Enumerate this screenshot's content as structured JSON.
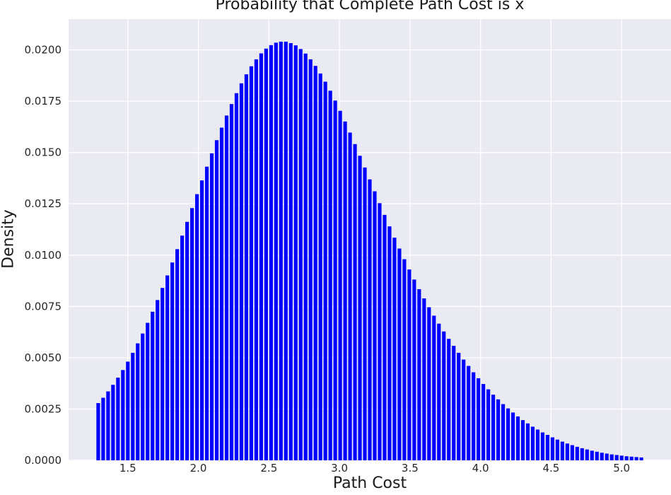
{
  "chart_data": {
    "type": "bar",
    "title": "Probability that Complete Path Cost is x",
    "xlabel": "Path Cost",
    "ylabel": "Density",
    "xlim": [
      1.08,
      5.35
    ],
    "ylim": [
      0.0,
      0.0215
    ],
    "xticks": [
      "1.5",
      "2.0",
      "2.5",
      "3.0",
      "3.5",
      "4.0",
      "4.5",
      "5.0"
    ],
    "yticks": [
      "0.0000",
      "0.0025",
      "0.0050",
      "0.0075",
      "0.0100",
      "0.0125",
      "0.0150",
      "0.0175",
      "0.0200"
    ],
    "grid": true,
    "background": "#eaeaf2",
    "grid_color": "#ffffff",
    "bar_color": "#0000ff",
    "bar_width": 0.026,
    "x": [
      1.29,
      1.325,
      1.36,
      1.395,
      1.43,
      1.465,
      1.5,
      1.535,
      1.57,
      1.605,
      1.64,
      1.675,
      1.71,
      1.745,
      1.78,
      1.815,
      1.85,
      1.885,
      1.92,
      1.955,
      1.99,
      2.025,
      2.06,
      2.095,
      2.13,
      2.165,
      2.2,
      2.235,
      2.27,
      2.305,
      2.34,
      2.375,
      2.41,
      2.445,
      2.48,
      2.515,
      2.55,
      2.585,
      2.62,
      2.655,
      2.69,
      2.725,
      2.76,
      2.795,
      2.83,
      2.865,
      2.9,
      2.935,
      2.97,
      3.005,
      3.04,
      3.075,
      3.11,
      3.145,
      3.18,
      3.215,
      3.25,
      3.285,
      3.32,
      3.355,
      3.39,
      3.425,
      3.46,
      3.495,
      3.53,
      3.565,
      3.6,
      3.635,
      3.67,
      3.705,
      3.74,
      3.775,
      3.81,
      3.845,
      3.88,
      3.915,
      3.95,
      3.985,
      4.02,
      4.055,
      4.09,
      4.125,
      4.16,
      4.195,
      4.23,
      4.265,
      4.3,
      4.335,
      4.37,
      4.405,
      4.44,
      4.475,
      4.51,
      4.545,
      4.58,
      4.615,
      4.65,
      4.685,
      4.72,
      4.755,
      4.79,
      4.825,
      4.86,
      4.895,
      4.93,
      4.965,
      5.0,
      5.035,
      5.07,
      5.105,
      5.14
    ],
    "values": [
      0.00279,
      0.00305,
      0.00336,
      0.00368,
      0.00403,
      0.0044,
      0.00481,
      0.00524,
      0.0057,
      0.00618,
      0.0067,
      0.00724,
      0.00781,
      0.0084,
      0.00901,
      0.00964,
      0.01029,
      0.01095,
      0.01162,
      0.01229,
      0.01297,
      0.01364,
      0.01431,
      0.01496,
      0.0156,
      0.01621,
      0.0168,
      0.01736,
      0.01789,
      0.01837,
      0.01881,
      0.0192,
      0.01954,
      0.01983,
      0.02006,
      0.02023,
      0.02035,
      0.0204,
      0.0204,
      0.02033,
      0.02022,
      0.02004,
      0.01982,
      0.01954,
      0.01922,
      0.01885,
      0.01845,
      0.01801,
      0.01753,
      0.01703,
      0.01651,
      0.01597,
      0.01541,
      0.01484,
      0.01427,
      0.01369,
      0.01311,
      0.01253,
      0.01196,
      0.0114,
      0.01085,
      0.01032,
      0.0098,
      0.0093,
      0.00881,
      0.00834,
      0.00789,
      0.00746,
      0.00705,
      0.00666,
      0.00628,
      0.00592,
      0.00558,
      0.00524,
      0.00491,
      0.0046,
      0.00429,
      0.004,
      0.00372,
      0.00346,
      0.0032,
      0.00297,
      0.00274,
      0.00253,
      0.00233,
      0.00214,
      0.00196,
      0.0018,
      0.00164,
      0.0015,
      0.00136,
      0.00124,
      0.00112,
      0.00101,
      0.00091,
      0.00082,
      0.00074,
      0.00066,
      0.00059,
      0.00053,
      0.00047,
      0.00042,
      0.00037,
      0.00033,
      0.00029,
      0.00026,
      0.00023,
      0.0002,
      0.00018,
      0.00016,
      0.00014
    ]
  }
}
